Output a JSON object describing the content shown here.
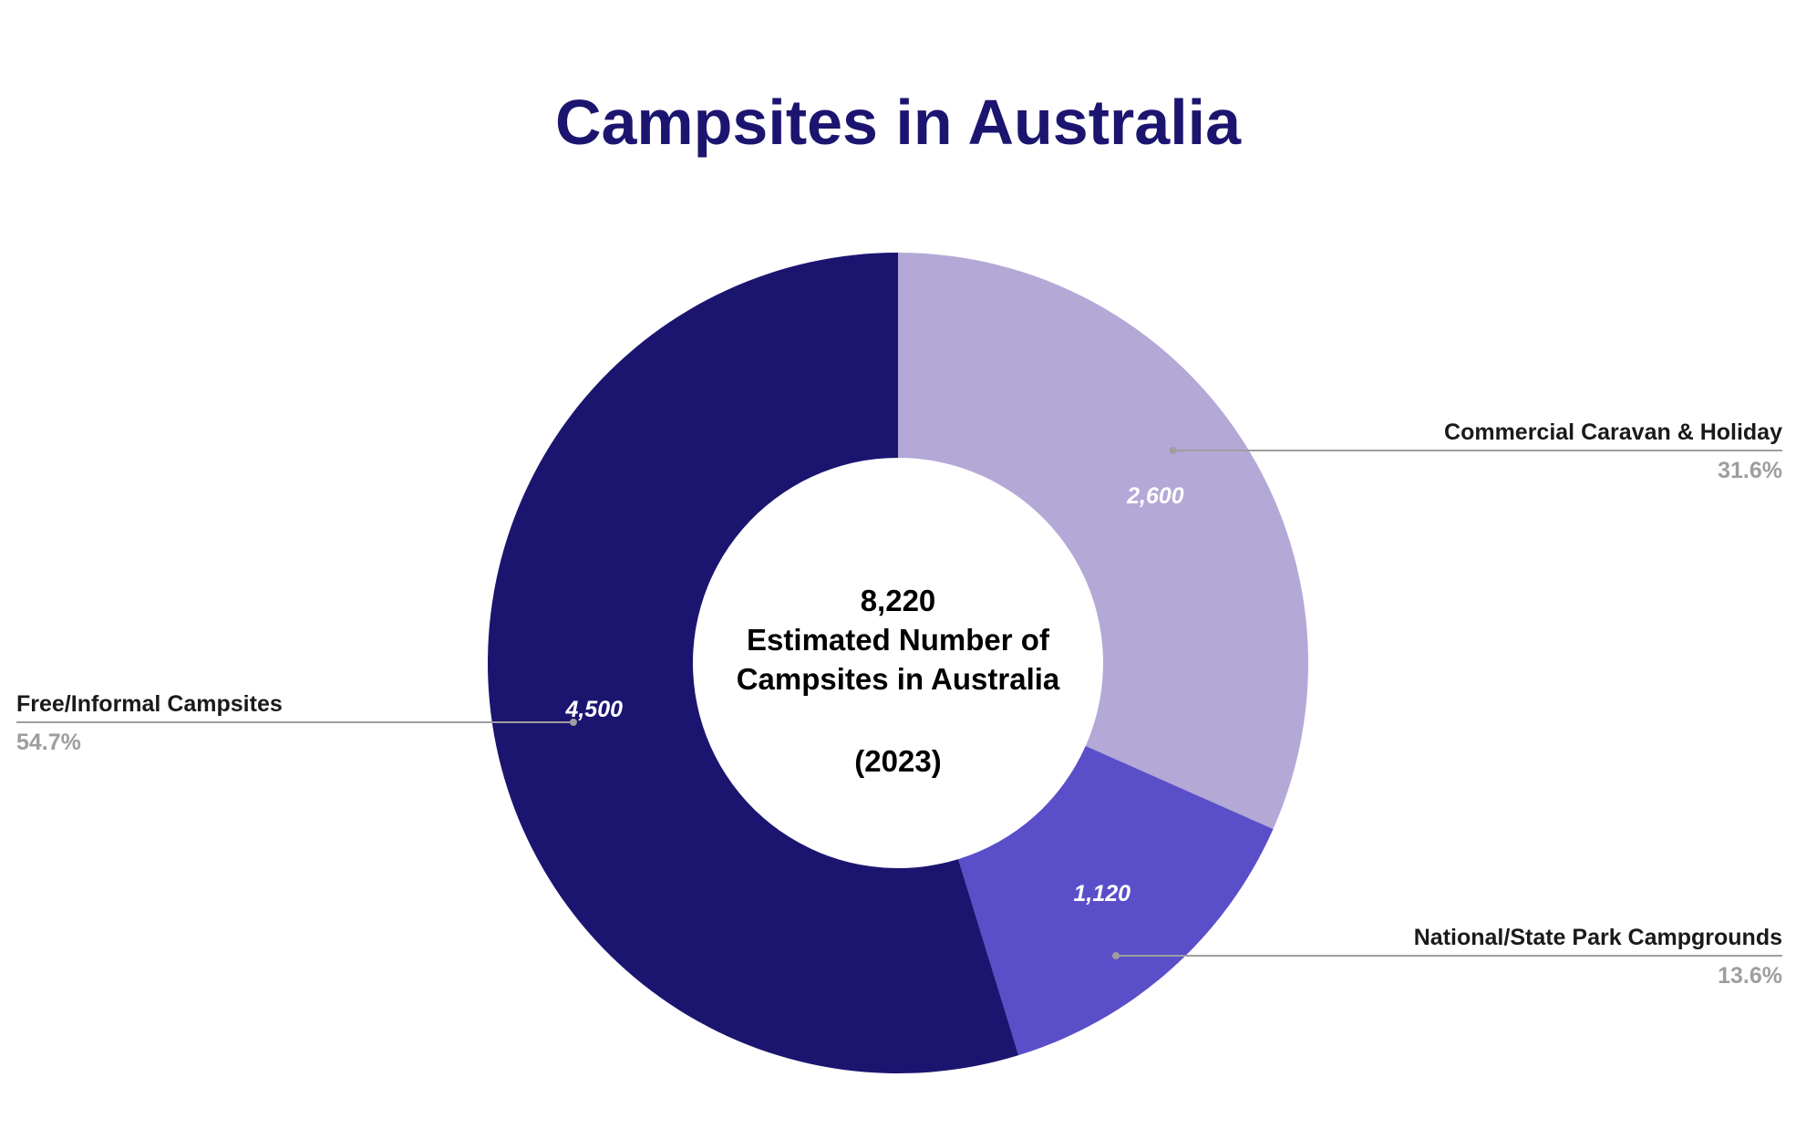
{
  "chart_data": {
    "type": "pie",
    "donut": true,
    "title": "Campsites in Australia",
    "title_color": "#1c1570",
    "center_label": {
      "total": "8,220",
      "line1": "Estimated Number of",
      "line2": "Campsites in Australia",
      "year": "(2023)"
    },
    "slices": [
      {
        "label": "Commercial Caravan & Holiday",
        "value": 2600,
        "value_label": "2,600",
        "percent_label": "31.6%",
        "color": "#b3a8d6"
      },
      {
        "label": "National/State Park Campgrounds",
        "value": 1120,
        "value_label": "1,120",
        "percent_label": "13.6%",
        "color": "#5b4ec9"
      },
      {
        "label": "Free/Informal Campsites",
        "value": 4500,
        "value_label": "4,500",
        "percent_label": "54.7%",
        "color": "#1c1570"
      }
    ],
    "start_angle": "12 o'clock",
    "direction": "clockwise",
    "legend": "none"
  }
}
